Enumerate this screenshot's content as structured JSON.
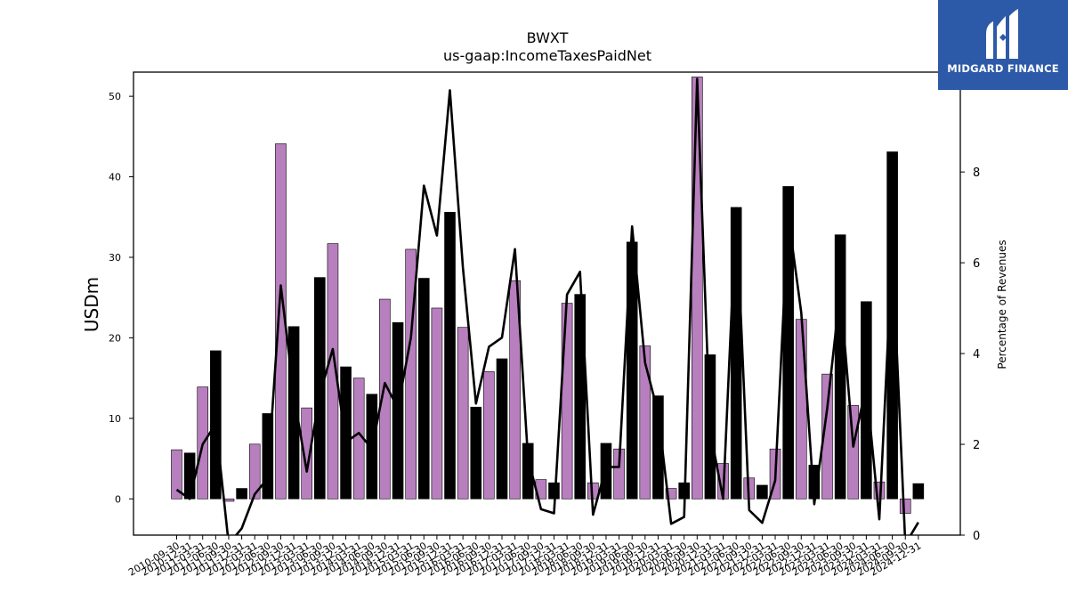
{
  "brand": {
    "name": "MIDGARD FINANCE",
    "color": "#2d5aa8"
  },
  "chart_data": {
    "type": "bar",
    "title": "BWXT",
    "subtitle": "us-gaap:IncomeTaxesPaidNet",
    "ylabel": "USDm",
    "y2label": "Percentage of Revenues",
    "ylim": [
      -4.5,
      53
    ],
    "y2lim": [
      0,
      10.2
    ],
    "yticks": [
      0,
      10,
      20,
      30,
      40,
      50
    ],
    "y2ticks": [
      0,
      2,
      4,
      6,
      8,
      10
    ],
    "colors": {
      "quarter": "#b77fbd",
      "fiscal_year_end": "#000000",
      "line": "#000000"
    },
    "categories": [
      "2010-09-30",
      "2010-12-31",
      "2011-03-31",
      "2011-06-30",
      "2011-09-30",
      "2011-12-31",
      "2012-03-31",
      "2012-06-30",
      "2012-09-30",
      "2012-12-31",
      "2013-03-31",
      "2013-06-30",
      "2013-09-30",
      "2013-12-31",
      "2014-03-31",
      "2014-06-30",
      "2014-09-30",
      "2014-12-31",
      "2015-03-31",
      "2015-06-30",
      "2015-09-30",
      "2015-12-31",
      "2016-03-31",
      "2016-06-30",
      "2016-09-30",
      "2016-12-31",
      "2017-03-31",
      "2017-06-30",
      "2017-09-30",
      "2017-12-31",
      "2018-03-31",
      "2018-06-30",
      "2018-09-30",
      "2018-12-31",
      "2019-03-31",
      "2019-06-30",
      "2019-09-30",
      "2019-12-31",
      "2020-03-31",
      "2020-06-30",
      "2020-09-30",
      "2020-12-31",
      "2021-03-31",
      "2021-06-30",
      "2021-09-30",
      "2021-12-31",
      "2022-03-31",
      "2022-06-30",
      "2022-09-30",
      "2022-12-31",
      "2023-03-31",
      "2023-06-30",
      "2023-09-30",
      "2023-12-31",
      "2024-03-31",
      "2024-06-30",
      "2024-09-30",
      "2024-12-31"
    ],
    "series": [
      {
        "values": [
          6.1,
          5.7,
          13.9,
          18.4,
          -0.3,
          1.3,
          6.8,
          10.6,
          44.1,
          21.4,
          11.3,
          27.5,
          31.7,
          16.4,
          15.0,
          13.0,
          24.8,
          21.9,
          31.0,
          27.4,
          23.7,
          35.6,
          21.3,
          11.4,
          15.8,
          17.4,
          27.1,
          6.9,
          2.4,
          2.0,
          24.3,
          25.4,
          2.0,
          6.9,
          6.2,
          31.9,
          19.0,
          12.8,
          1.3,
          2.0,
          52.4,
          17.9,
          4.4,
          36.2,
          2.6,
          1.7,
          6.2,
          38.8,
          22.3,
          4.2,
          15.5,
          32.8,
          11.6,
          24.5,
          2.1,
          43.1,
          -1.8,
          1.9
        ],
        "fiscal_year_end": [
          1,
          3,
          5,
          7,
          9,
          11,
          13,
          15,
          17,
          19,
          21,
          23,
          25,
          27,
          29,
          31,
          33,
          35,
          37,
          39,
          41,
          43,
          45,
          47,
          49,
          51,
          53,
          55,
          57
        ]
      },
      {
        "axis": "right",
        "values": [
          1.0,
          0.8,
          2.0,
          2.45,
          -0.2,
          0.15,
          0.9,
          1.25,
          5.5,
          3.1,
          1.4,
          3.1,
          4.1,
          2.05,
          2.25,
          1.9,
          3.35,
          2.8,
          4.35,
          7.7,
          6.6,
          9.8,
          5.9,
          2.9,
          4.15,
          4.35,
          6.3,
          1.7,
          0.57,
          0.48,
          5.3,
          5.8,
          0.45,
          1.5,
          1.5,
          6.8,
          3.8,
          2.7,
          0.25,
          0.4,
          10.05,
          2.3,
          0.8,
          7.2,
          0.55,
          0.27,
          1.2,
          7.05,
          4.9,
          0.68,
          2.8,
          5.4,
          1.95,
          3.3,
          0.35,
          6.3,
          -0.2,
          0.28
        ]
      }
    ]
  }
}
